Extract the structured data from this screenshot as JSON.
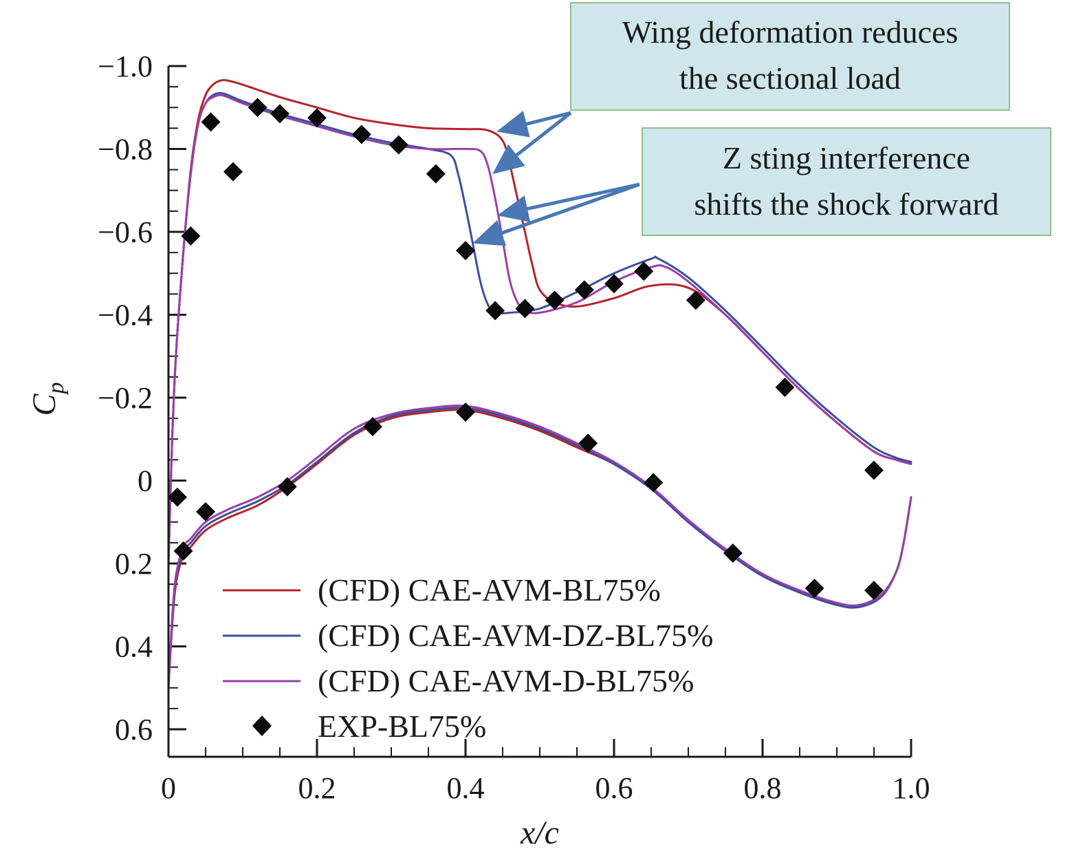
{
  "chart_data": {
    "type": "line",
    "title": "",
    "xlabel": "x/c",
    "ylabel_main": "C",
    "ylabel_sub": "p",
    "xlim": [
      0,
      1.0
    ],
    "ylim": [
      0.65,
      -1.0
    ],
    "y_inverted": true,
    "xticks": [
      0,
      0.2,
      0.4,
      0.6,
      0.8,
      1.0
    ],
    "xtick_labels": [
      "0",
      "0.2",
      "0.4",
      "0.6",
      "0.8",
      "1.0"
    ],
    "yticks": [
      -1.0,
      -0.8,
      -0.6,
      -0.4,
      -0.2,
      0,
      0.2,
      0.4,
      0.6
    ],
    "ytick_labels": [
      "−1.0",
      "−0.8",
      "−0.6",
      "−0.4",
      "−0.2",
      "0",
      "0.2",
      "0.4",
      "0.6"
    ],
    "legend_position": "bottom-left",
    "series": [
      {
        "name": "(CFD) CAE-AVM-BL75%",
        "color": "#b5232a",
        "upper": {
          "x": [
            0.0,
            0.005,
            0.01,
            0.02,
            0.03,
            0.04,
            0.05,
            0.06,
            0.07,
            0.08,
            0.1,
            0.15,
            0.2,
            0.25,
            0.3,
            0.35,
            0.4,
            0.43,
            0.45,
            0.46,
            0.47,
            0.48,
            0.49,
            0.5,
            0.52,
            0.55,
            0.6,
            0.65,
            0.7,
            0.75,
            0.8,
            0.85,
            0.9,
            0.95,
            0.98,
            1.0
          ],
          "y": [
            0.2,
            -0.1,
            -0.3,
            -0.55,
            -0.75,
            -0.87,
            -0.93,
            -0.955,
            -0.965,
            -0.965,
            -0.955,
            -0.925,
            -0.9,
            -0.875,
            -0.86,
            -0.85,
            -0.848,
            -0.845,
            -0.82,
            -0.76,
            -0.68,
            -0.6,
            -0.52,
            -0.46,
            -0.43,
            -0.42,
            -0.44,
            -0.47,
            -0.465,
            -0.4,
            -0.31,
            -0.22,
            -0.14,
            -0.07,
            -0.05,
            -0.04
          ]
        },
        "lower": {
          "x": [
            0.0,
            0.005,
            0.01,
            0.02,
            0.03,
            0.05,
            0.08,
            0.12,
            0.16,
            0.2,
            0.25,
            0.3,
            0.35,
            0.4,
            0.45,
            0.5,
            0.55,
            0.6,
            0.65,
            0.7,
            0.75,
            0.8,
            0.85,
            0.9,
            0.93,
            0.96,
            0.98,
            0.99,
            1.0
          ],
          "y": [
            0.5,
            0.35,
            0.25,
            0.18,
            0.16,
            0.12,
            0.09,
            0.06,
            0.015,
            -0.04,
            -0.11,
            -0.15,
            -0.165,
            -0.17,
            -0.15,
            -0.12,
            -0.08,
            -0.04,
            0.02,
            0.1,
            0.17,
            0.23,
            0.27,
            0.3,
            0.305,
            0.28,
            0.22,
            0.15,
            0.04
          ]
        }
      },
      {
        "name": "(CFD) CAE-AVM-DZ-BL75%",
        "color": "#3a4f9c",
        "upper": {
          "x": [
            0.0,
            0.005,
            0.01,
            0.02,
            0.03,
            0.04,
            0.05,
            0.06,
            0.07,
            0.08,
            0.1,
            0.15,
            0.2,
            0.25,
            0.3,
            0.35,
            0.38,
            0.39,
            0.4,
            0.41,
            0.42,
            0.43,
            0.44,
            0.46,
            0.5,
            0.55,
            0.6,
            0.65,
            0.66,
            0.7,
            0.75,
            0.8,
            0.85,
            0.9,
            0.95,
            0.98,
            1.0
          ],
          "y": [
            0.2,
            -0.1,
            -0.3,
            -0.55,
            -0.74,
            -0.86,
            -0.91,
            -0.93,
            -0.935,
            -0.93,
            -0.915,
            -0.885,
            -0.86,
            -0.835,
            -0.815,
            -0.8,
            -0.785,
            -0.74,
            -0.66,
            -0.57,
            -0.48,
            -0.425,
            -0.405,
            -0.405,
            -0.415,
            -0.455,
            -0.5,
            -0.535,
            -0.535,
            -0.49,
            -0.41,
            -0.32,
            -0.23,
            -0.15,
            -0.08,
            -0.055,
            -0.045
          ]
        },
        "lower": {
          "x": [
            0.0,
            0.005,
            0.01,
            0.02,
            0.03,
            0.05,
            0.08,
            0.12,
            0.16,
            0.2,
            0.25,
            0.3,
            0.35,
            0.4,
            0.45,
            0.5,
            0.55,
            0.6,
            0.65,
            0.7,
            0.75,
            0.8,
            0.85,
            0.9,
            0.93,
            0.96,
            0.98,
            0.99,
            1.0
          ],
          "y": [
            0.5,
            0.34,
            0.24,
            0.17,
            0.15,
            0.11,
            0.08,
            0.05,
            0.01,
            -0.045,
            -0.115,
            -0.155,
            -0.17,
            -0.175,
            -0.155,
            -0.125,
            -0.085,
            -0.04,
            0.02,
            0.1,
            0.17,
            0.23,
            0.27,
            0.3,
            0.305,
            0.28,
            0.22,
            0.15,
            0.04
          ]
        }
      },
      {
        "name": "(CFD) CAE-AVM-D-BL75%",
        "color": "#9a3fa8",
        "upper": {
          "x": [
            0.0,
            0.005,
            0.01,
            0.02,
            0.03,
            0.04,
            0.05,
            0.06,
            0.07,
            0.08,
            0.1,
            0.15,
            0.2,
            0.25,
            0.3,
            0.35,
            0.4,
            0.42,
            0.43,
            0.44,
            0.45,
            0.46,
            0.47,
            0.48,
            0.5,
            0.55,
            0.6,
            0.65,
            0.67,
            0.7,
            0.75,
            0.8,
            0.85,
            0.9,
            0.95,
            0.98,
            1.0
          ],
          "y": [
            0.2,
            -0.1,
            -0.3,
            -0.55,
            -0.74,
            -0.86,
            -0.91,
            -0.925,
            -0.93,
            -0.925,
            -0.91,
            -0.88,
            -0.855,
            -0.83,
            -0.81,
            -0.8,
            -0.8,
            -0.795,
            -0.76,
            -0.68,
            -0.58,
            -0.48,
            -0.43,
            -0.41,
            -0.405,
            -0.43,
            -0.48,
            -0.515,
            -0.515,
            -0.48,
            -0.4,
            -0.31,
            -0.22,
            -0.14,
            -0.07,
            -0.05,
            -0.04
          ]
        },
        "lower": {
          "x": [
            0.0,
            0.005,
            0.01,
            0.02,
            0.03,
            0.05,
            0.08,
            0.12,
            0.16,
            0.2,
            0.25,
            0.3,
            0.35,
            0.4,
            0.45,
            0.5,
            0.55,
            0.6,
            0.65,
            0.7,
            0.75,
            0.8,
            0.85,
            0.9,
            0.93,
            0.96,
            0.98,
            0.99,
            1.0
          ],
          "y": [
            0.5,
            0.33,
            0.23,
            0.16,
            0.14,
            0.1,
            0.07,
            0.04,
            0.0,
            -0.055,
            -0.125,
            -0.16,
            -0.175,
            -0.18,
            -0.16,
            -0.13,
            -0.09,
            -0.045,
            0.015,
            0.095,
            0.165,
            0.225,
            0.265,
            0.295,
            0.3,
            0.275,
            0.22,
            0.15,
            0.04
          ]
        }
      }
    ],
    "scatter": {
      "name": "EXP-BL75%",
      "color": "#0a0a0a",
      "x": [
        0.03,
        0.057,
        0.087,
        0.12,
        0.15,
        0.2,
        0.26,
        0.31,
        0.36,
        0.4,
        0.44,
        0.48,
        0.52,
        0.56,
        0.6,
        0.64,
        0.71,
        0.83,
        0.95,
        0.012,
        0.02,
        0.05,
        0.16,
        0.275,
        0.4,
        0.565,
        0.653,
        0.76,
        0.87,
        0.95
      ],
      "y": [
        -0.59,
        -0.865,
        -0.745,
        -0.9,
        -0.885,
        -0.875,
        -0.835,
        -0.81,
        -0.74,
        -0.555,
        -0.41,
        -0.415,
        -0.435,
        -0.46,
        -0.475,
        -0.505,
        -0.435,
        -0.225,
        -0.025,
        0.04,
        0.17,
        0.075,
        0.015,
        -0.13,
        -0.165,
        -0.09,
        0.005,
        0.175,
        0.26,
        0.265
      ]
    },
    "annotations": [
      {
        "lines": [
          "Wing deformation reduces",
          "the sectional load"
        ],
        "background": "#cfe7ec",
        "border": "#8fbf8a"
      },
      {
        "lines": [
          "Z sting interference",
          "shifts the shock forward"
        ],
        "background": "#cfe7ec",
        "border": "#8fbf8a"
      }
    ],
    "arrow_color": "#4a78b4"
  }
}
